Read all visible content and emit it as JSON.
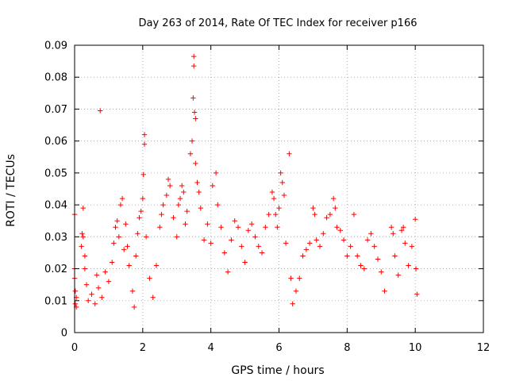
{
  "chart_data": {
    "type": "scatter",
    "title": "Day 263 of 2014, Rate Of TEC Index for receiver p166",
    "xlabel": "GPS time / hours",
    "ylabel": "ROTI / TECUs",
    "xlim": [
      0,
      12
    ],
    "ylim": [
      0,
      0.09
    ],
    "xticks": [
      0,
      2,
      4,
      6,
      8,
      10,
      12
    ],
    "yticks": [
      0,
      0.01,
      0.02,
      0.03,
      0.04,
      0.05,
      0.06,
      0.07,
      0.08,
      0.09
    ],
    "xtick_labels": [
      "0",
      "2",
      "4",
      "6",
      "8",
      "10",
      "12"
    ],
    "ytick_labels": [
      "0",
      "0.01",
      "0.02",
      "0.03",
      "0.04",
      "0.05",
      "0.06",
      "0.07",
      "0.08",
      "0.09"
    ],
    "grid": true,
    "marker": "+",
    "color": "#ff0000",
    "series": [
      {
        "name": "p166 ROTI",
        "points": [
          [
            0.0,
            0.037
          ],
          [
            0.0,
            0.02
          ],
          [
            0.0,
            0.017
          ],
          [
            0.02,
            0.013
          ],
          [
            0.02,
            0.009
          ],
          [
            0.05,
            0.008
          ],
          [
            0.05,
            0.011
          ],
          [
            0.25,
            0.039
          ],
          [
            0.22,
            0.031
          ],
          [
            0.25,
            0.03
          ],
          [
            0.2,
            0.027
          ],
          [
            0.3,
            0.024
          ],
          [
            0.3,
            0.02
          ],
          [
            0.35,
            0.015
          ],
          [
            0.4,
            0.01
          ],
          [
            0.5,
            0.012
          ],
          [
            0.6,
            0.009
          ],
          [
            0.65,
            0.018
          ],
          [
            0.7,
            0.014
          ],
          [
            0.75,
            0.0695
          ],
          [
            0.8,
            0.011
          ],
          [
            0.9,
            0.019
          ],
          [
            1.0,
            0.016
          ],
          [
            1.1,
            0.022
          ],
          [
            1.15,
            0.028
          ],
          [
            1.2,
            0.033
          ],
          [
            1.25,
            0.035
          ],
          [
            1.3,
            0.03
          ],
          [
            1.35,
            0.04
          ],
          [
            1.4,
            0.042
          ],
          [
            1.45,
            0.026
          ],
          [
            1.5,
            0.034
          ],
          [
            1.55,
            0.027
          ],
          [
            1.6,
            0.021
          ],
          [
            1.7,
            0.013
          ],
          [
            1.75,
            0.008
          ],
          [
            1.8,
            0.024
          ],
          [
            1.85,
            0.031
          ],
          [
            1.9,
            0.036
          ],
          [
            1.95,
            0.038
          ],
          [
            2.0,
            0.042
          ],
          [
            2.02,
            0.0495
          ],
          [
            2.05,
            0.062
          ],
          [
            2.05,
            0.059
          ],
          [
            2.1,
            0.03
          ],
          [
            2.2,
            0.017
          ],
          [
            2.3,
            0.011
          ],
          [
            2.4,
            0.021
          ],
          [
            2.5,
            0.033
          ],
          [
            2.55,
            0.037
          ],
          [
            2.6,
            0.04
          ],
          [
            2.7,
            0.043
          ],
          [
            2.75,
            0.048
          ],
          [
            2.8,
            0.046
          ],
          [
            2.9,
            0.036
          ],
          [
            3.0,
            0.03
          ],
          [
            3.05,
            0.04
          ],
          [
            3.1,
            0.042
          ],
          [
            3.15,
            0.046
          ],
          [
            3.2,
            0.044
          ],
          [
            3.25,
            0.034
          ],
          [
            3.3,
            0.038
          ],
          [
            3.4,
            0.056
          ],
          [
            3.45,
            0.06
          ],
          [
            3.48,
            0.0735
          ],
          [
            3.5,
            0.0865
          ],
          [
            3.5,
            0.0835
          ],
          [
            3.52,
            0.069
          ],
          [
            3.55,
            0.067
          ],
          [
            3.55,
            0.053
          ],
          [
            3.6,
            0.047
          ],
          [
            3.65,
            0.044
          ],
          [
            3.7,
            0.039
          ],
          [
            3.8,
            0.029
          ],
          [
            3.9,
            0.034
          ],
          [
            4.0,
            0.028
          ],
          [
            4.05,
            0.046
          ],
          [
            4.15,
            0.05
          ],
          [
            4.2,
            0.04
          ],
          [
            4.3,
            0.033
          ],
          [
            4.4,
            0.025
          ],
          [
            4.5,
            0.019
          ],
          [
            4.6,
            0.029
          ],
          [
            4.7,
            0.035
          ],
          [
            4.8,
            0.033
          ],
          [
            4.9,
            0.027
          ],
          [
            5.0,
            0.022
          ],
          [
            5.1,
            0.032
          ],
          [
            5.2,
            0.034
          ],
          [
            5.3,
            0.03
          ],
          [
            5.4,
            0.027
          ],
          [
            5.5,
            0.025
          ],
          [
            5.6,
            0.033
          ],
          [
            5.7,
            0.037
          ],
          [
            5.8,
            0.044
          ],
          [
            5.85,
            0.042
          ],
          [
            5.9,
            0.037
          ],
          [
            5.95,
            0.033
          ],
          [
            6.0,
            0.039
          ],
          [
            6.05,
            0.05
          ],
          [
            6.1,
            0.047
          ],
          [
            6.15,
            0.043
          ],
          [
            6.2,
            0.028
          ],
          [
            6.3,
            0.056
          ],
          [
            6.35,
            0.017
          ],
          [
            6.4,
            0.009
          ],
          [
            6.5,
            0.013
          ],
          [
            6.6,
            0.017
          ],
          [
            6.7,
            0.024
          ],
          [
            6.8,
            0.026
          ],
          [
            6.9,
            0.028
          ],
          [
            7.0,
            0.039
          ],
          [
            7.05,
            0.037
          ],
          [
            7.1,
            0.029
          ],
          [
            7.2,
            0.027
          ],
          [
            7.3,
            0.031
          ],
          [
            7.4,
            0.036
          ],
          [
            7.5,
            0.037
          ],
          [
            7.6,
            0.042
          ],
          [
            7.65,
            0.039
          ],
          [
            7.7,
            0.033
          ],
          [
            7.8,
            0.032
          ],
          [
            7.9,
            0.029
          ],
          [
            8.0,
            0.024
          ],
          [
            8.1,
            0.027
          ],
          [
            8.2,
            0.037
          ],
          [
            8.3,
            0.024
          ],
          [
            8.4,
            0.021
          ],
          [
            8.5,
            0.02
          ],
          [
            8.6,
            0.029
          ],
          [
            8.7,
            0.031
          ],
          [
            8.8,
            0.027
          ],
          [
            8.9,
            0.023
          ],
          [
            9.0,
            0.019
          ],
          [
            9.1,
            0.013
          ],
          [
            9.3,
            0.033
          ],
          [
            9.35,
            0.031
          ],
          [
            9.4,
            0.024
          ],
          [
            9.5,
            0.018
          ],
          [
            9.6,
            0.032
          ],
          [
            9.65,
            0.033
          ],
          [
            9.7,
            0.028
          ],
          [
            9.8,
            0.021
          ],
          [
            9.9,
            0.027
          ],
          [
            10.0,
            0.0355
          ],
          [
            10.02,
            0.02
          ],
          [
            10.05,
            0.012
          ]
        ]
      }
    ]
  }
}
